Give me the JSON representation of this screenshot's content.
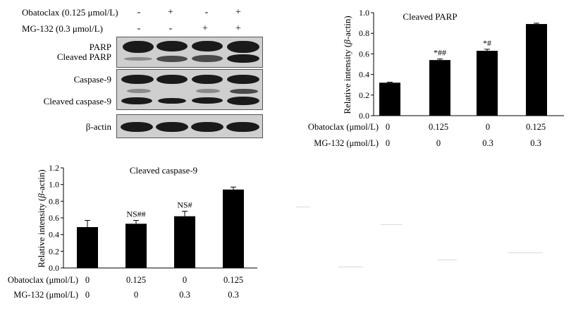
{
  "blot": {
    "treatments": [
      {
        "label": "Obatoclax (0.125 μmol/L)",
        "signs": [
          "-",
          "+",
          "-",
          "+"
        ]
      },
      {
        "label": "MG-132 (0.3 μmol/L)",
        "signs": [
          "-",
          "-",
          "+",
          "+"
        ]
      }
    ],
    "bands": {
      "parp": "PARP",
      "cleaved_parp": "Cleaved PARP",
      "caspase9": "Caspase-9",
      "cleaved_caspase9": "Cleaved caspase-9",
      "actin": "β-actin"
    }
  },
  "chart_data": [
    {
      "type": "bar",
      "title": "Cleaved PARP",
      "ylabel_parts": [
        "Relative intensity (",
        "β",
        "-actin)"
      ],
      "ylim": [
        0,
        1.0
      ],
      "yticks": [
        "0.0",
        "0.2",
        "0.4",
        "0.6",
        "0.8",
        "1.0"
      ],
      "categories": [
        "1",
        "2",
        "3",
        "4"
      ],
      "values": [
        0.32,
        0.54,
        0.63,
        0.89
      ],
      "errors": [
        0.005,
        0.01,
        0.015,
        0.008
      ],
      "annotations": [
        "",
        "*##",
        "*#",
        ""
      ],
      "table": [
        {
          "label": "Obatoclax (μmol/L)",
          "values": [
            "0",
            "0.125",
            "0",
            "0.125"
          ]
        },
        {
          "label": "MG-132 (μmol/L)",
          "values": [
            "0",
            "0",
            "0.3",
            "0.3"
          ]
        }
      ]
    },
    {
      "type": "bar",
      "title": "Cleaved caspase-9",
      "ylabel_parts": [
        "Relative intensity (",
        "β",
        "-actin)"
      ],
      "ylim": [
        0,
        1.2
      ],
      "yticks": [
        "0.0",
        "0.2",
        "0.4",
        "0.6",
        "0.8",
        "1.0",
        "1.2"
      ],
      "categories": [
        "1",
        "2",
        "3",
        "4"
      ],
      "values": [
        0.49,
        0.53,
        0.62,
        0.94
      ],
      "errors": [
        0.08,
        0.04,
        0.06,
        0.03
      ],
      "annotations": [
        "",
        "NS##",
        "NS#",
        ""
      ],
      "table": [
        {
          "label": "Obatoclax (μmol/L)",
          "values": [
            "0",
            "0.125",
            "0",
            "0.125"
          ]
        },
        {
          "label": "MG-132 (μmol/L)",
          "values": [
            "0",
            "0",
            "0.3",
            "0.3"
          ]
        }
      ]
    }
  ]
}
